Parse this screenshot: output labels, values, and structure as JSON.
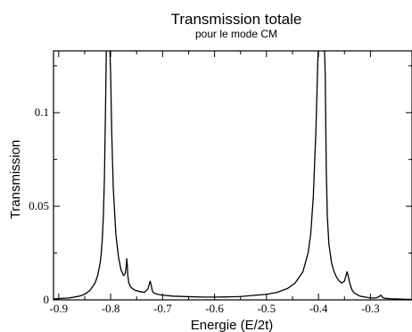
{
  "chart_data": {
    "type": "line",
    "title": "Transmission totale",
    "subtitle": "pour le mode CM",
    "xlabel": "Energie (E/2t)",
    "ylabel": "Transmission",
    "xlim": [
      -0.91,
      -0.22
    ],
    "ylim": [
      0,
      0.133
    ],
    "x_ticks": [
      -0.9,
      -0.8,
      -0.7,
      -0.6,
      -0.5,
      -0.4,
      -0.3
    ],
    "x_tick_labels": [
      "-0.9",
      "-0.8",
      "-0.7",
      "-0.6",
      "-0.5",
      "-0.4",
      "-0.3"
    ],
    "y_ticks": [
      0,
      0.05,
      0.1
    ],
    "y_tick_labels": [
      "0",
      "0.05",
      "0.1"
    ],
    "grid": false,
    "legend": "none",
    "series": [
      {
        "color": "#000000",
        "x": [
          -0.91,
          -0.88,
          -0.86,
          -0.85,
          -0.84,
          -0.83,
          -0.825,
          -0.82,
          -0.818,
          -0.816,
          -0.814,
          -0.812,
          -0.81,
          -0.808,
          -0.806,
          -0.804,
          -0.802,
          -0.8,
          -0.798,
          -0.795,
          -0.79,
          -0.785,
          -0.78,
          -0.775,
          -0.772,
          -0.77,
          -0.769,
          -0.768,
          -0.767,
          -0.765,
          -0.762,
          -0.758,
          -0.752,
          -0.745,
          -0.735,
          -0.728,
          -0.726,
          -0.724,
          -0.722,
          -0.72,
          -0.718,
          -0.715,
          -0.71,
          -0.7,
          -0.68,
          -0.65,
          -0.62,
          -0.6,
          -0.57,
          -0.55,
          -0.52,
          -0.5,
          -0.48,
          -0.46,
          -0.445,
          -0.43,
          -0.42,
          -0.415,
          -0.41,
          -0.405,
          -0.402,
          -0.4,
          -0.398,
          -0.395,
          -0.393,
          -0.391,
          -0.389,
          -0.387,
          -0.385,
          -0.383,
          -0.38,
          -0.375,
          -0.37,
          -0.365,
          -0.36,
          -0.355,
          -0.35,
          -0.347,
          -0.345,
          -0.343,
          -0.34,
          -0.335,
          -0.33,
          -0.32,
          -0.31,
          -0.3,
          -0.29,
          -0.285,
          -0.282,
          -0.28,
          -0.277,
          -0.275,
          -0.27,
          -0.26,
          -0.25,
          -0.24,
          -0.23,
          -0.22
        ],
        "y": [
          0.0005,
          0.001,
          0.002,
          0.003,
          0.005,
          0.009,
          0.013,
          0.02,
          0.025,
          0.033,
          0.045,
          0.065,
          0.1,
          0.14,
          0.14,
          0.14,
          0.14,
          0.12,
          0.09,
          0.06,
          0.035,
          0.023,
          0.016,
          0.013,
          0.014,
          0.018,
          0.022,
          0.019,
          0.013,
          0.009,
          0.007,
          0.006,
          0.005,
          0.0045,
          0.004,
          0.006,
          0.008,
          0.01,
          0.008,
          0.005,
          0.004,
          0.0035,
          0.003,
          0.0025,
          0.002,
          0.0017,
          0.0015,
          0.0015,
          0.0016,
          0.0018,
          0.0025,
          0.003,
          0.004,
          0.006,
          0.009,
          0.015,
          0.025,
          0.035,
          0.055,
          0.09,
          0.12,
          0.14,
          0.14,
          0.14,
          0.14,
          0.14,
          0.14,
          0.12,
          0.07,
          0.045,
          0.03,
          0.02,
          0.015,
          0.012,
          0.01,
          0.009,
          0.01,
          0.013,
          0.015,
          0.013,
          0.009,
          0.005,
          0.0035,
          0.002,
          0.0015,
          0.001,
          0.001,
          0.0015,
          0.002,
          0.0025,
          0.0015,
          0.001,
          0.0008,
          0.0006,
          0.0005,
          0.0004,
          0.0003,
          0.0003
        ]
      }
    ]
  }
}
